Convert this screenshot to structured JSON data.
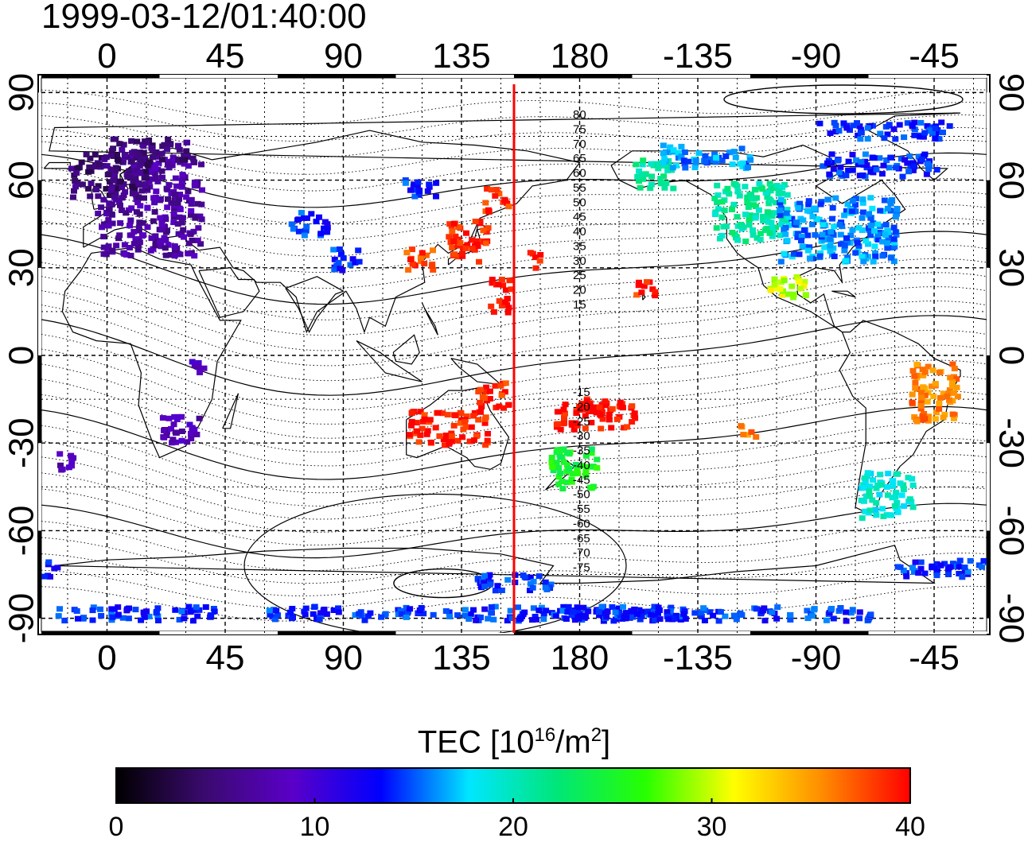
{
  "title": "1999-03-12/01:40:00",
  "map": {
    "lon_ticks": [
      "0",
      "45",
      "90",
      "135",
      "180",
      "-135",
      "-90",
      "-45"
    ],
    "lat_ticks": [
      "90",
      "60",
      "30",
      "0",
      "-30",
      "-60",
      "-90"
    ],
    "lon_range_deg": [
      -25,
      335
    ],
    "lat_range_deg": [
      -95,
      95
    ],
    "terminator_lon": 155,
    "contour_labels_north": [
      "80",
      "75",
      "70",
      "65",
      "60",
      "55",
      "50",
      "45",
      "40",
      "35",
      "30",
      "25",
      "20",
      "15"
    ],
    "contour_labels_south": [
      "-15",
      "-20",
      "-25",
      "-30",
      "-35",
      "-40",
      "-45",
      "-50",
      "-55",
      "-60",
      "-65",
      "-70",
      "-75"
    ],
    "tec_patches": [
      {
        "region": "Europe",
        "value": 7
      },
      {
        "region": "Northwest Europe",
        "value": 5
      },
      {
        "region": "Central Asia",
        "value": 14
      },
      {
        "region": "Japan",
        "value": 39
      },
      {
        "region": "East Asia",
        "value": 38
      },
      {
        "region": "Western Pacific",
        "value": 40
      },
      {
        "region": "Hawaii",
        "value": 39
      },
      {
        "region": "Western North America",
        "value": 21
      },
      {
        "region": "Eastern North America",
        "value": 16
      },
      {
        "region": "Alaska",
        "value": 16
      },
      {
        "region": "Canada",
        "value": 14
      },
      {
        "region": "Mexico",
        "value": 30
      },
      {
        "region": "Brazil",
        "value": 36
      },
      {
        "region": "Southern South America",
        "value": 19
      },
      {
        "region": "Australia",
        "value": 39
      },
      {
        "region": "New Zealand",
        "value": 25
      },
      {
        "region": "South Pacific",
        "value": 40
      },
      {
        "region": "Southern Africa",
        "value": 8
      },
      {
        "region": "Antarctica",
        "value": 14
      }
    ]
  },
  "colorbar": {
    "label_prefix": "TEC  [10",
    "label_exp1": "16",
    "label_mid": "/m",
    "label_exp2": "2",
    "label_suffix": "]",
    "min": 0,
    "max": 40,
    "ticks": [
      "0",
      "10",
      "20",
      "30",
      "40"
    ],
    "stops": [
      "#000000",
      "#3a0a6e",
      "#5a00c8",
      "#0000ff",
      "#00e6ff",
      "#00e678",
      "#28ff00",
      "#ffff00",
      "#ff8c00",
      "#ff0000"
    ]
  }
}
